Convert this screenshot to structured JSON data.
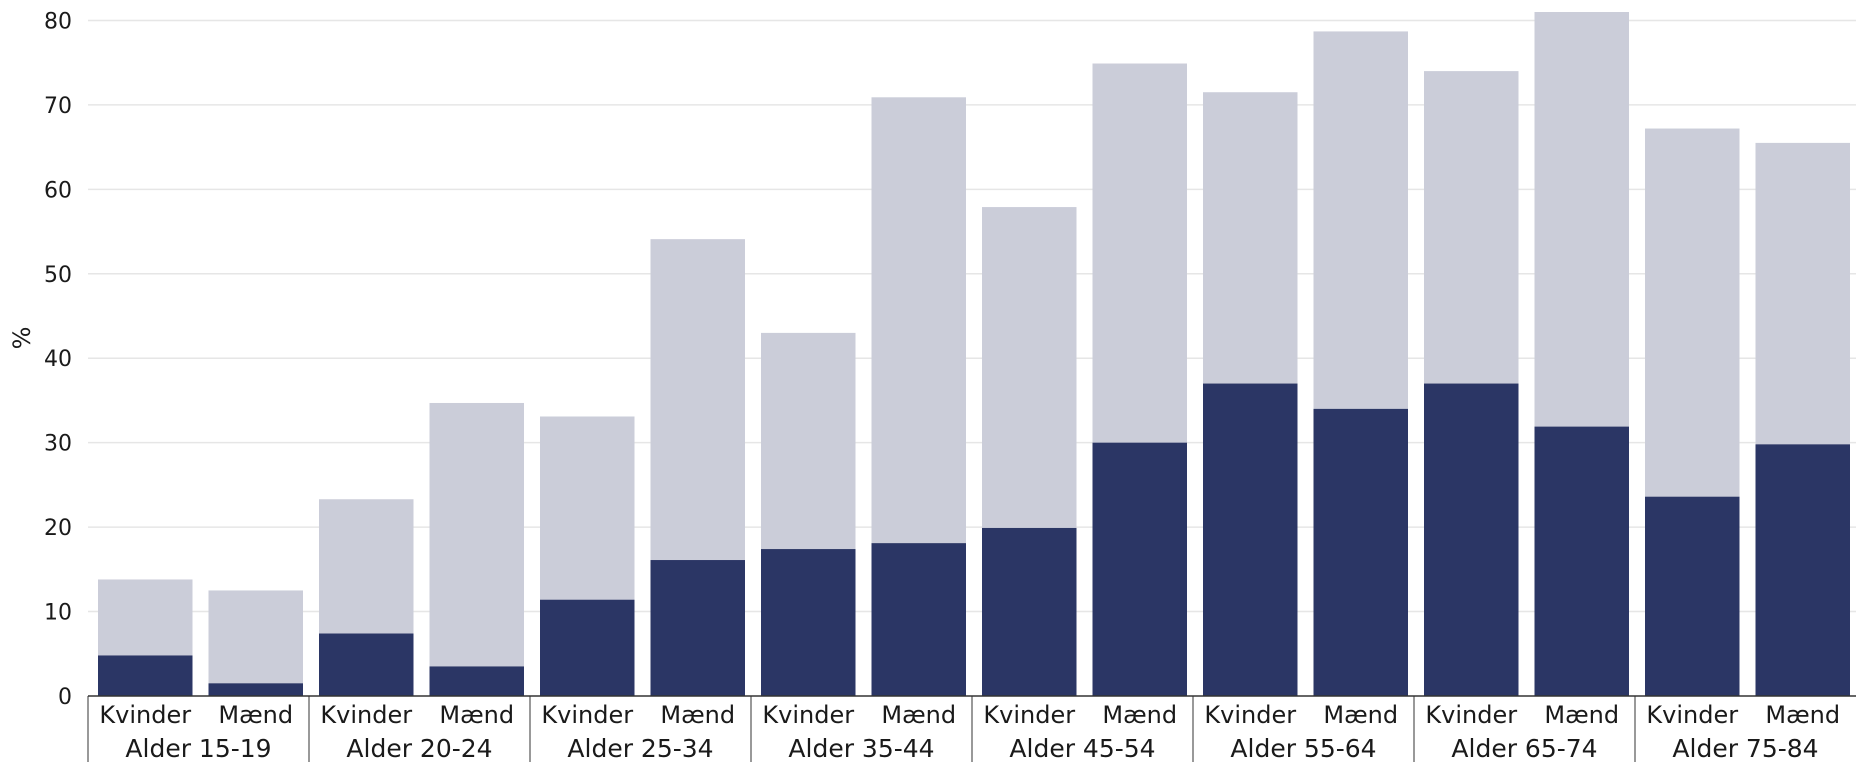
{
  "chart_data": {
    "type": "bar",
    "ylabel": "%",
    "ylim": [
      0,
      81
    ],
    "yticks": [
      0,
      10,
      20,
      30,
      40,
      50,
      60,
      70,
      80
    ],
    "grid": true,
    "stacking": "overlap",
    "colors": {
      "total": "#cbcdd9",
      "part": "#2b3665"
    },
    "groups": [
      {
        "label": "Alder 15-19",
        "bars": [
          {
            "category": "Kvinder",
            "total": 13.8,
            "part": 4.8
          },
          {
            "category": "Mænd",
            "total": 12.5,
            "part": 1.5
          }
        ]
      },
      {
        "label": "Alder 20-24",
        "bars": [
          {
            "category": "Kvinder",
            "total": 23.3,
            "part": 7.4
          },
          {
            "category": "Mænd",
            "total": 34.7,
            "part": 3.5
          }
        ]
      },
      {
        "label": "Alder 25-34",
        "bars": [
          {
            "category": "Kvinder",
            "total": 33.1,
            "part": 11.4
          },
          {
            "category": "Mænd",
            "total": 54.1,
            "part": 16.1
          }
        ]
      },
      {
        "label": "Alder 35-44",
        "bars": [
          {
            "category": "Kvinder",
            "total": 43.0,
            "part": 17.4
          },
          {
            "category": "Mænd",
            "total": 70.9,
            "part": 18.1
          }
        ]
      },
      {
        "label": "Alder 45-54",
        "bars": [
          {
            "category": "Kvinder",
            "total": 57.9,
            "part": 19.9
          },
          {
            "category": "Mænd",
            "total": 74.9,
            "part": 30.0
          }
        ]
      },
      {
        "label": "Alder 55-64",
        "bars": [
          {
            "category": "Kvinder",
            "total": 71.5,
            "part": 37.0
          },
          {
            "category": "Mænd",
            "total": 78.7,
            "part": 34.0
          }
        ]
      },
      {
        "label": "Alder 65-74",
        "bars": [
          {
            "category": "Kvinder",
            "total": 74.0,
            "part": 37.0
          },
          {
            "category": "Mænd",
            "total": 81.0,
            "part": 31.9
          }
        ]
      },
      {
        "label": "Alder 75-84",
        "bars": [
          {
            "category": "Kvinder",
            "total": 67.2,
            "part": 23.6
          },
          {
            "category": "Mænd",
            "total": 65.5,
            "part": 29.8
          }
        ]
      }
    ]
  }
}
